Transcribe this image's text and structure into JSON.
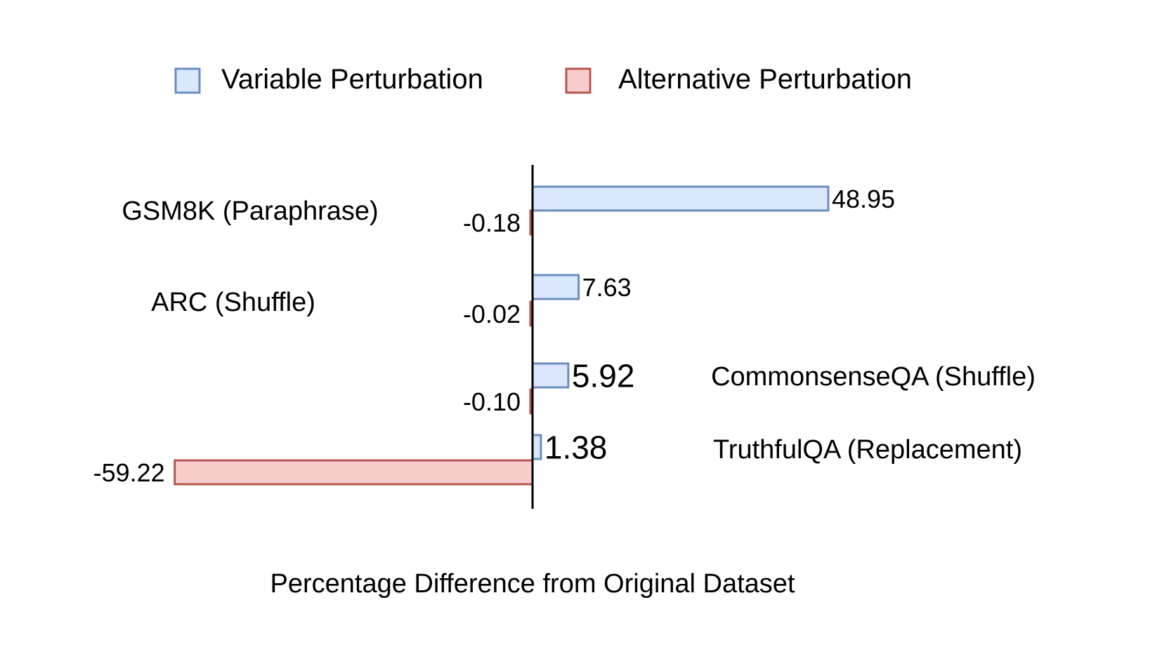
{
  "chart_data": {
    "type": "bar",
    "orientation": "horizontal",
    "categories": [
      "GSM8K (Paraphrase)",
      "ARC (Shuffle)",
      "CommonsenseQA (Shuffle)",
      "TruthfulQA (Replacement)"
    ],
    "series": [
      {
        "name": "Variable Perturbation",
        "values": [
          48.95,
          7.63,
          5.92,
          1.38
        ],
        "labels": [
          "48.95",
          "7.63",
          "5.92",
          "1.38"
        ],
        "fill": "#dae8fc",
        "stroke": "#6c8ebf"
      },
      {
        "name": "Alternative Perturbation",
        "values": [
          -0.18,
          -0.02,
          -0.1,
          -59.22
        ],
        "labels": [
          "-0.18",
          "-0.02",
          "-0.10",
          "-59.22"
        ],
        "fill": "#f8cecc",
        "stroke": "#b85450"
      }
    ],
    "xlabel": "Percentage Difference from Original Dataset",
    "ylabel": "",
    "xlim": [
      -59.22,
      48.95
    ],
    "grid": false,
    "legend_position": "top"
  }
}
